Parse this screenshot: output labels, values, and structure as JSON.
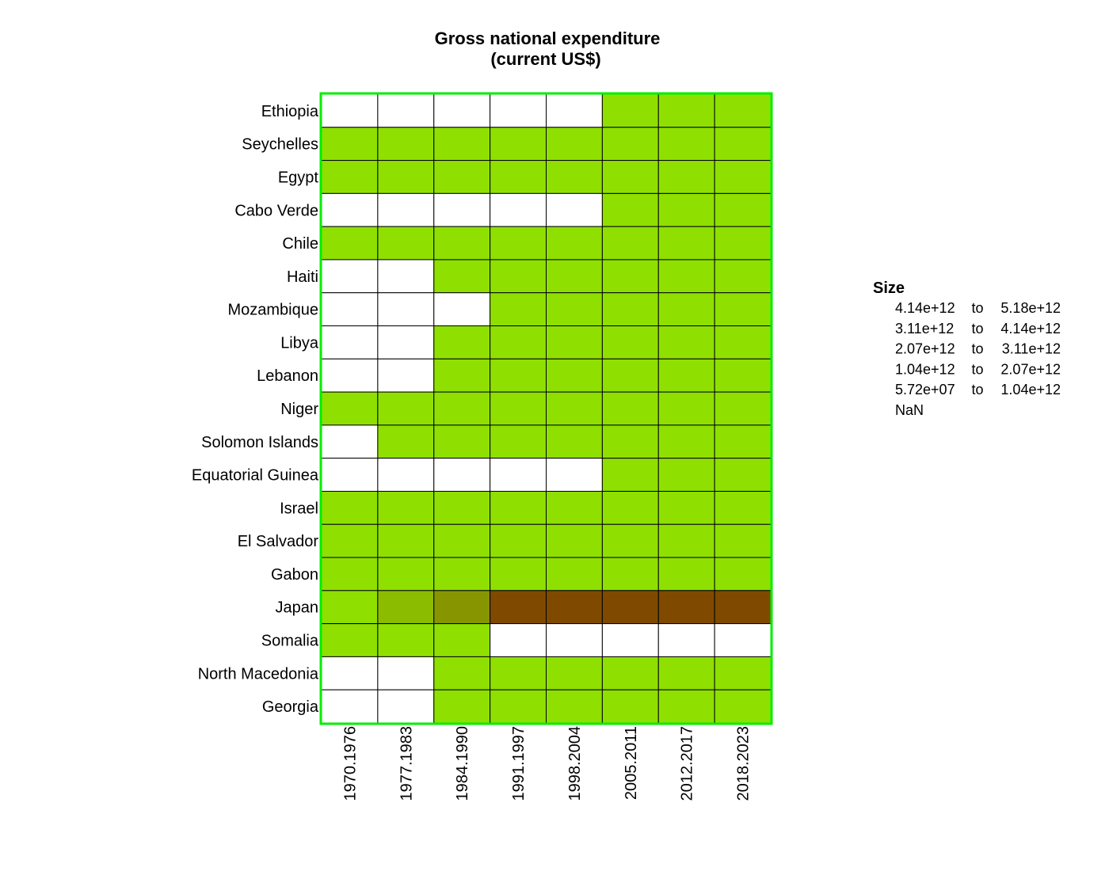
{
  "chart_data": {
    "type": "heatmap",
    "title": "Gross national expenditure",
    "subtitle": "(current US$)",
    "rows": [
      "Ethiopia",
      "Seychelles",
      "Egypt",
      "Cabo Verde",
      "Chile",
      "Haiti",
      "Mozambique",
      "Libya",
      "Lebanon",
      "Niger",
      "Solomon Islands",
      "Equatorial Guinea",
      "Israel",
      "El Salvador",
      "Gabon",
      "Japan",
      "Somalia",
      "North Macedonia",
      "Georgia"
    ],
    "columns": [
      "1970.1976",
      "1977.1983",
      "1984.1990",
      "1991.1997",
      "1998.2004",
      "2005.2011",
      "2012.2017",
      "2018.2023"
    ],
    "bins": [
      "NaN",
      "5.72e+07 to 1.04e+12",
      "1.04e+12 to 2.07e+12",
      "2.07e+12 to 3.11e+12",
      "3.11e+12 to 4.14e+12",
      "4.14e+12 to 5.18e+12"
    ],
    "cell_bins": [
      [
        0,
        0,
        0,
        0,
        0,
        1,
        1,
        1
      ],
      [
        1,
        1,
        1,
        1,
        1,
        1,
        1,
        1
      ],
      [
        1,
        1,
        1,
        1,
        1,
        1,
        1,
        1
      ],
      [
        0,
        0,
        0,
        0,
        0,
        1,
        1,
        1
      ],
      [
        1,
        1,
        1,
        1,
        1,
        1,
        1,
        1
      ],
      [
        0,
        0,
        1,
        1,
        1,
        1,
        1,
        1
      ],
      [
        0,
        0,
        0,
        1,
        1,
        1,
        1,
        1
      ],
      [
        0,
        0,
        1,
        1,
        1,
        1,
        1,
        1
      ],
      [
        0,
        0,
        1,
        1,
        1,
        1,
        1,
        1
      ],
      [
        1,
        1,
        1,
        1,
        1,
        1,
        1,
        1
      ],
      [
        0,
        1,
        1,
        1,
        1,
        1,
        1,
        1
      ],
      [
        0,
        0,
        0,
        0,
        0,
        1,
        1,
        1
      ],
      [
        1,
        1,
        1,
        1,
        1,
        1,
        1,
        1
      ],
      [
        1,
        1,
        1,
        1,
        1,
        1,
        1,
        1
      ],
      [
        1,
        1,
        1,
        1,
        1,
        1,
        1,
        1
      ],
      [
        1,
        2,
        3,
        5,
        5,
        5,
        5,
        5
      ],
      [
        1,
        1,
        1,
        0,
        0,
        0,
        0,
        0
      ],
      [
        0,
        0,
        1,
        1,
        1,
        1,
        1,
        1
      ],
      [
        0,
        0,
        1,
        1,
        1,
        1,
        1,
        1
      ]
    ],
    "bin_colors": [
      "#ffffff",
      "#8fe000",
      "#8cbc00",
      "#879600",
      "#826f00",
      "#7f4a00"
    ],
    "legend": {
      "title": "Size",
      "entries": [
        {
          "from": "4.14e+12",
          "sep": "to",
          "to": "5.18e+12"
        },
        {
          "from": "3.11e+12",
          "sep": "to",
          "to": "4.14e+12"
        },
        {
          "from": "2.07e+12",
          "sep": "to",
          "to": "3.11e+12"
        },
        {
          "from": "1.04e+12",
          "sep": "to",
          "to": "2.07e+12"
        },
        {
          "from": "5.72e+07",
          "sep": "to",
          "to": "1.04e+12"
        },
        {
          "from": "NaN",
          "sep": "",
          "to": ""
        }
      ],
      "placement": "right"
    },
    "border_color": "#00ee00"
  }
}
